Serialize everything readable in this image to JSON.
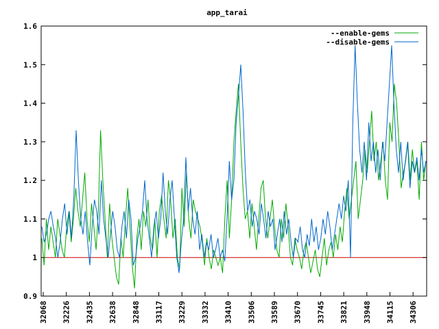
{
  "chart_data": {
    "type": "line",
    "title": "app_tarai",
    "xlabel": "",
    "ylabel": "",
    "ylim": [
      0.9,
      1.6
    ],
    "yticks": [
      "0.9",
      "1",
      "1.1",
      "1.2",
      "1.3",
      "1.4",
      "1.5",
      "1.6"
    ],
    "xticks": [
      "32068",
      "32226",
      "32435",
      "32638",
      "32848",
      "33117",
      "33229",
      "33332",
      "33410",
      "33506",
      "33589",
      "33670",
      "33745",
      "33821",
      "33948",
      "34115",
      "34306"
    ],
    "grid": false,
    "legend_position": "top-right",
    "baseline": {
      "value": 1.0,
      "color": "#cc0000"
    },
    "series": [
      {
        "name": "--enable-gems",
        "color": "#00aa00",
        "values": [
          1.05,
          0.98,
          1.1,
          1.02,
          1.08,
          1.04,
          1.0,
          1.1,
          1.06,
          1.02,
          1.0,
          1.08,
          1.12,
          1.04,
          1.1,
          1.18,
          1.12,
          1.08,
          1.15,
          1.22,
          1.1,
          1.04,
          1.14,
          1.08,
          1.02,
          1.12,
          1.33,
          1.2,
          1.1,
          1.0,
          1.14,
          1.05,
          1.0,
          0.95,
          0.93,
          1.05,
          1.0,
          1.1,
          1.18,
          1.08,
          0.98,
          0.92,
          1.05,
          1.1,
          1.02,
          1.12,
          1.08,
          1.15,
          1.05,
          1.02,
          1.1,
          1.0,
          1.12,
          1.16,
          1.1,
          1.05,
          1.2,
          1.15,
          1.05,
          1.1,
          1.0,
          0.97,
          1.18,
          1.08,
          1.22,
          1.1,
          1.05,
          1.15,
          1.12,
          1.1,
          1.08,
          1.04,
          0.98,
          1.05,
          1.0,
          0.97,
          1.02,
          1.0,
          0.98,
          1.0,
          0.96,
          1.1,
          1.2,
          1.05,
          1.15,
          1.3,
          1.38,
          1.45,
          1.3,
          1.18,
          1.1,
          1.12,
          1.05,
          1.14,
          1.08,
          1.02,
          1.1,
          1.18,
          1.2,
          1.1,
          1.05,
          1.1,
          1.15,
          1.08,
          1.02,
          1.0,
          1.1,
          1.05,
          1.14,
          1.08,
          1.0,
          0.98,
          1.05,
          1.02,
          1.0,
          0.97,
          1.02,
          1.04,
          1.0,
          0.96,
          0.99,
          1.02,
          0.97,
          0.95,
          1.0,
          1.05,
          0.98,
          1.02,
          1.04,
          1.0,
          1.06,
          1.02,
          1.08,
          1.04,
          1.12,
          1.18,
          1.1,
          1.15,
          1.2,
          1.25,
          1.1,
          1.15,
          1.2,
          1.28,
          1.22,
          1.3,
          1.38,
          1.25,
          1.3,
          1.2,
          1.25,
          1.3,
          1.2,
          1.15,
          1.35,
          1.3,
          1.45,
          1.4,
          1.3,
          1.18,
          1.22,
          1.25,
          1.3,
          1.2,
          1.28,
          1.22,
          1.25,
          1.15,
          1.3,
          1.2,
          1.25
        ]
      },
      {
        "name": "--disable-gems",
        "color": "#0066cc",
        "values": [
          1.08,
          1.04,
          1.06,
          1.1,
          1.12,
          1.08,
          1.05,
          1.0,
          1.04,
          1.1,
          1.14,
          1.06,
          1.12,
          1.05,
          1.16,
          1.33,
          1.2,
          1.1,
          1.06,
          1.12,
          1.04,
          0.98,
          1.08,
          1.15,
          1.12,
          1.06,
          1.2,
          1.1,
          1.05,
          1.0,
          1.06,
          1.12,
          1.08,
          1.02,
          1.0,
          1.08,
          1.12,
          1.05,
          1.15,
          1.1,
          0.98,
          1.0,
          1.05,
          1.08,
          1.12,
          1.2,
          1.1,
          1.05,
          1.0,
          1.08,
          1.12,
          1.05,
          1.1,
          1.22,
          1.12,
          1.06,
          1.15,
          1.2,
          1.1,
          1.0,
          0.96,
          1.04,
          1.1,
          1.26,
          1.12,
          1.18,
          1.1,
          1.06,
          1.12,
          1.02,
          1.06,
          1.0,
          1.04,
          1.02,
          1.06,
          1.0,
          1.02,
          1.05,
          1.0,
          1.02,
          0.99,
          1.1,
          1.25,
          1.15,
          1.2,
          1.35,
          1.42,
          1.5,
          1.38,
          1.22,
          1.12,
          1.15,
          1.08,
          1.12,
          1.1,
          1.06,
          1.14,
          1.1,
          1.05,
          1.12,
          1.08,
          1.1,
          1.02,
          1.06,
          1.1,
          1.04,
          1.12,
          1.06,
          1.1,
          1.04,
          1.0,
          1.05,
          1.04,
          1.08,
          1.02,
          1.0,
          1.06,
          1.03,
          1.1,
          1.04,
          1.08,
          1.02,
          1.05,
          1.1,
          1.06,
          1.12,
          1.08,
          1.02,
          1.06,
          1.1,
          1.14,
          1.1,
          1.16,
          1.12,
          1.2,
          1.0,
          1.35,
          1.55,
          1.4,
          1.28,
          1.22,
          1.3,
          1.2,
          1.35,
          1.25,
          1.3,
          1.22,
          1.28,
          1.2,
          1.3,
          1.25,
          1.35,
          1.45,
          1.55,
          1.4,
          1.28,
          1.22,
          1.3,
          1.2,
          1.25,
          1.3,
          1.18,
          1.25,
          1.22,
          1.26,
          1.2,
          1.28,
          1.22,
          1.25
        ]
      }
    ]
  }
}
